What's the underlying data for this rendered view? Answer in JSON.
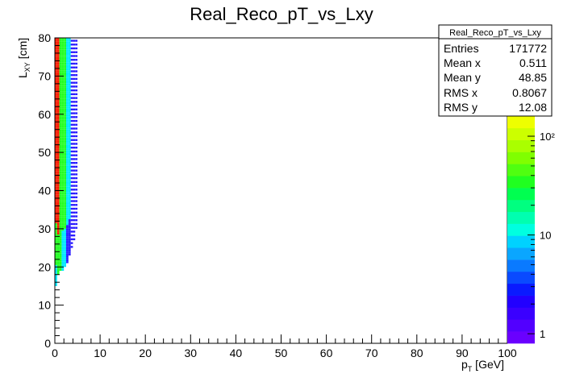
{
  "chart_data": {
    "type": "heatmap",
    "title": "Real_Reco_pT_vs_Lxy",
    "xlabel_main": "p",
    "xlabel_sub": "T",
    "xlabel_unit": " [GeV]",
    "ylabel_main": "L",
    "ylabel_sub": "XY",
    "ylabel_unit": " [cm]",
    "xlim": [
      0,
      100
    ],
    "ylim": [
      0,
      80
    ],
    "x_ticks": [
      "0",
      "10",
      "20",
      "30",
      "40",
      "50",
      "60",
      "70",
      "80",
      "90",
      "100"
    ],
    "y_ticks": [
      "0",
      "10",
      "20",
      "30",
      "40",
      "50",
      "60",
      "70",
      "80"
    ],
    "z_scale": "log",
    "z_ticks": [
      "1",
      "10",
      "10²"
    ],
    "bins": {
      "x_edges": [
        0,
        0.5,
        1.0,
        1.5,
        2.0,
        2.5,
        3.0,
        3.5,
        4.0,
        4.5,
        5.0
      ],
      "columns": [
        {
          "x_index": 0,
          "y_from": 15,
          "y_to": 80,
          "level_top": 3,
          "level_bottom": 1
        },
        {
          "x_index": 1,
          "y_from": 18,
          "y_to": 80,
          "level_top": 3,
          "level_bottom": 2
        },
        {
          "x_index": 2,
          "y_from": 19,
          "y_to": 80,
          "level_top": 2,
          "level_bottom": 2
        },
        {
          "x_index": 3,
          "y_from": 19,
          "y_to": 80,
          "level_top": 2,
          "level_bottom": 1
        },
        {
          "x_index": 4,
          "y_from": 20,
          "y_to": 80,
          "level_top": 2,
          "level_bottom": 1
        },
        {
          "x_index": 5,
          "y_from": 21,
          "y_to": 80,
          "level_top": 1,
          "level_bottom": 0
        },
        {
          "x_index": 6,
          "y_from": 23,
          "y_to": 80,
          "level_top": 1,
          "level_bottom": 0
        },
        {
          "x_index": 7,
          "y_from": 25,
          "y_to": 80,
          "level_top": 0,
          "level_bottom": 0
        },
        {
          "x_index": 8,
          "y_from": 27,
          "y_to": 80,
          "level_top": 0,
          "level_bottom": 0
        },
        {
          "x_index": 9,
          "y_from": 30,
          "y_to": 80,
          "level_top": 0,
          "level_bottom": 0
        }
      ],
      "level_colors": [
        "#2a1bff",
        "#00e6ff",
        "#22ff22",
        "#ff1a00"
      ]
    },
    "palette": [
      "#6a00ff",
      "#5200ff",
      "#3a00ff",
      "#2200ff",
      "#0a1aff",
      "#0a4aff",
      "#0a7aff",
      "#0aa6ff",
      "#00d2ff",
      "#00ffe0",
      "#00ffb0",
      "#00ff80",
      "#00ff50",
      "#20ff20",
      "#50ff10",
      "#80ff00",
      "#aaff00",
      "#ccff00",
      "#eeff00"
    ],
    "stats": {
      "title": "Real_Reco_pT_vs_Lxy",
      "rows": [
        {
          "label": "Entries",
          "value": "171772"
        },
        {
          "label": "Mean x",
          "value": "0.511"
        },
        {
          "label": "Mean y",
          "value": "48.85"
        },
        {
          "label": "RMS x",
          "value": "0.8067"
        },
        {
          "label": "RMS y",
          "value": "12.08"
        }
      ]
    }
  }
}
